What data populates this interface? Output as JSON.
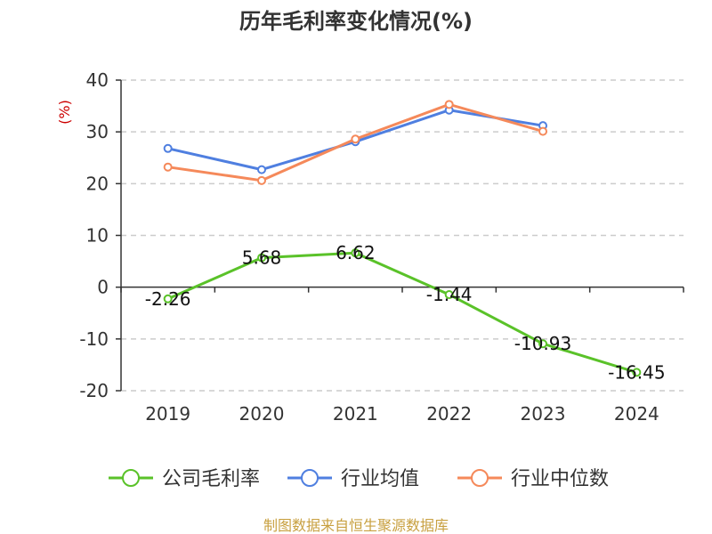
{
  "chart_data": {
    "type": "line",
    "title": "历年毛利率变化情况(%)",
    "ylabel": "(%)",
    "categories": [
      "2019",
      "2020",
      "2021",
      "2022",
      "2023",
      "2024"
    ],
    "ylim": [
      -20,
      40
    ],
    "yticks": [
      "40",
      "30",
      "20",
      "10",
      "0",
      "-10",
      "-20"
    ],
    "grid": true,
    "legend_position": "bottom",
    "series": [
      {
        "name": "公司毛利率",
        "color": "#5ac229",
        "values": [
          -2.26,
          5.68,
          6.62,
          -1.44,
          -10.93,
          -16.45
        ],
        "labels": [
          "-2.26",
          "5.68",
          "6.62",
          "-1.44",
          "-10.93",
          "-16.45"
        ]
      },
      {
        "name": "行业均值",
        "color": "#4f7fe0",
        "values": [
          26.8,
          22.7,
          28.1,
          34.2,
          31.2,
          null
        ]
      },
      {
        "name": "行业中位数",
        "color": "#f5895a",
        "values": [
          23.2,
          20.6,
          28.6,
          35.3,
          30.1,
          null
        ]
      }
    ]
  },
  "source": "制图数据来自恒生聚源数据库"
}
